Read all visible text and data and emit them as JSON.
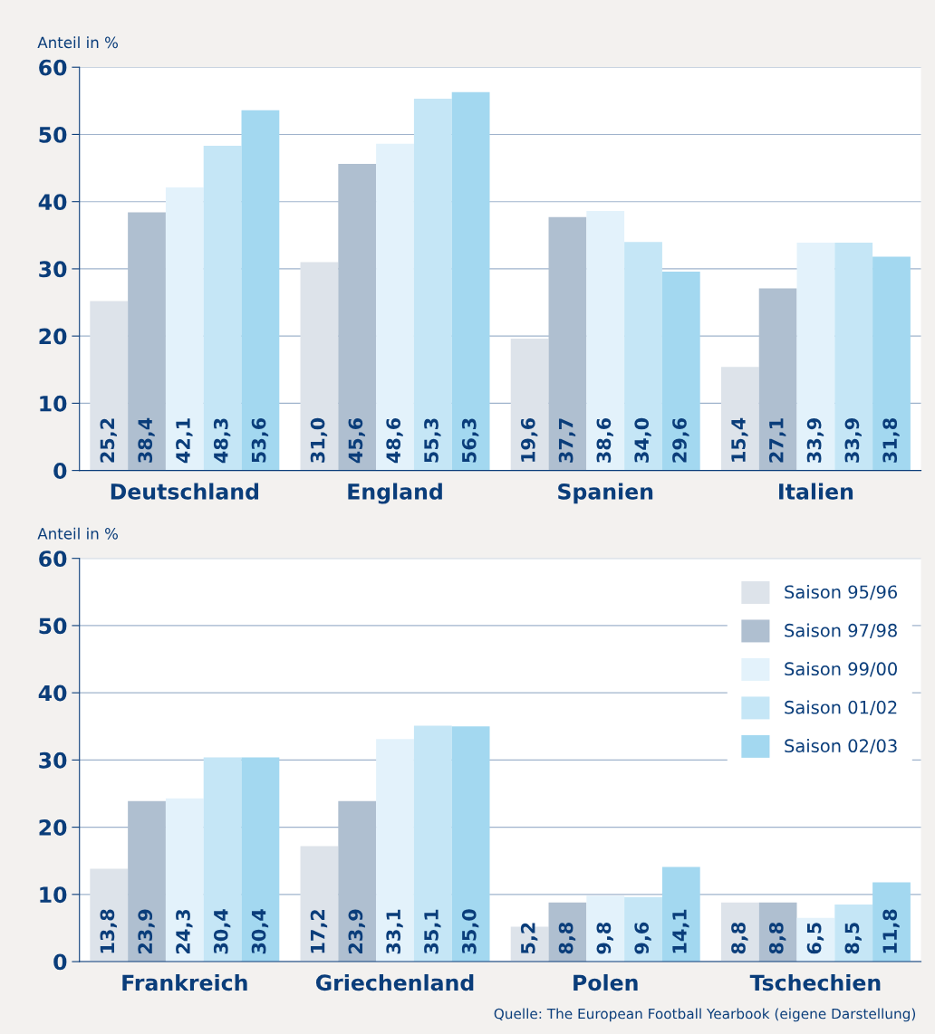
{
  "chart_data": [
    {
      "type": "bar",
      "ylabel": "Anteil in %",
      "categories": [
        "Deutschland",
        "England",
        "Spanien",
        "Italien"
      ],
      "ylim": [
        0,
        60
      ],
      "yticks": [
        0,
        10,
        20,
        30,
        40,
        50,
        60
      ],
      "grid": "y",
      "legend": false,
      "data_labels": true,
      "series": [
        {
          "color": "#dde3ea",
          "values": [
            25.2,
            31.0,
            19.6,
            15.4
          ],
          "value_labels": [
            "25,2",
            "31,0",
            "19,6",
            "15,4"
          ]
        },
        {
          "color": "#afbfd0",
          "values": [
            38.4,
            45.6,
            37.7,
            27.1
          ],
          "value_labels": [
            "38,4",
            "45,6",
            "37,7",
            "27,1"
          ]
        },
        {
          "color": "#e3f2fb",
          "values": [
            42.1,
            48.6,
            38.6,
            33.9
          ],
          "value_labels": [
            "42,1",
            "48,6",
            "38,6",
            "33,9"
          ]
        },
        {
          "color": "#c5e6f6",
          "values": [
            48.3,
            55.3,
            34.0,
            33.9
          ],
          "value_labels": [
            "48,3",
            "55,3",
            "34,0",
            "33,9"
          ]
        },
        {
          "color": "#a3d8f0",
          "values": [
            53.6,
            56.3,
            29.6,
            31.8
          ],
          "value_labels": [
            "53,6",
            "56,3",
            "29,6",
            "31,8"
          ]
        }
      ]
    },
    {
      "type": "bar",
      "ylabel": "Anteil in %",
      "categories": [
        "Frankreich",
        "Griechenland",
        "Polen",
        "Tschechien"
      ],
      "ylim": [
        0,
        60
      ],
      "yticks": [
        0,
        10,
        20,
        30,
        40,
        50,
        60
      ],
      "grid": "y",
      "legend": "top right",
      "data_labels": true,
      "annotations": [
        "Quelle: The European Football Yearbook (eigene Darstellung)"
      ],
      "series": [
        {
          "name": "Saison 95/96",
          "color": "#dde3ea",
          "values": [
            13.8,
            17.2,
            5.2,
            8.8
          ],
          "value_labels": [
            "13,8",
            "17,2",
            "5,2",
            "8,8"
          ]
        },
        {
          "name": "Saison 97/98",
          "color": "#afbfd0",
          "values": [
            23.9,
            23.9,
            8.8,
            8.8
          ],
          "value_labels": [
            "23,9",
            "23,9",
            "8,8",
            "8,8"
          ]
        },
        {
          "name": "Saison 99/00",
          "color": "#e3f2fb",
          "values": [
            24.3,
            33.1,
            9.8,
            6.5
          ],
          "value_labels": [
            "24,3",
            "33,1",
            "9,8",
            "6,5"
          ]
        },
        {
          "name": "Saison 01/02",
          "color": "#c5e6f6",
          "values": [
            30.4,
            35.1,
            9.6,
            8.5
          ],
          "value_labels": [
            "30,4",
            "35,1",
            "9,6",
            "8,5"
          ]
        },
        {
          "name": "Saison 02/03",
          "color": "#a3d8f0",
          "values": [
            30.4,
            35.0,
            14.1,
            11.8
          ],
          "value_labels": [
            "30,4",
            "35,0",
            "14,1",
            "11,8"
          ]
        }
      ]
    }
  ]
}
